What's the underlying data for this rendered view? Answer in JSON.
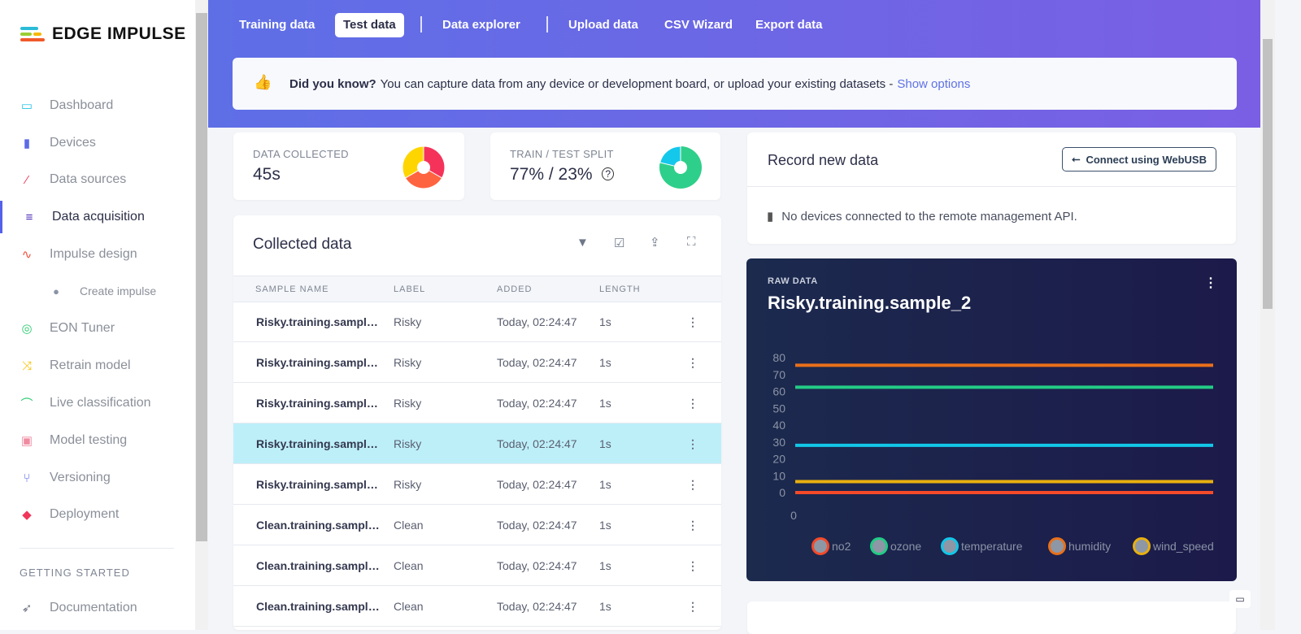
{
  "brand": "EDGE IMPULSE",
  "sidebar": {
    "items": [
      {
        "label": "Dashboard",
        "icon": "monitor-icon",
        "color": "#29c4e8"
      },
      {
        "label": "Devices",
        "icon": "chip-icon",
        "color": "#5c6be6"
      },
      {
        "label": "Data sources",
        "icon": "wand-icon",
        "color": "#f0365a"
      },
      {
        "label": "Data acquisition",
        "icon": "database-icon",
        "color": "#4a2ab5"
      },
      {
        "label": "Impulse design",
        "icon": "pulse-icon",
        "color": "#f0503c"
      },
      {
        "label": "Create impulse",
        "icon": "dot-icon",
        "color": "#8a94a6"
      },
      {
        "label": "EON Tuner",
        "icon": "compass-icon",
        "color": "#2ecc71"
      },
      {
        "label": "Retrain model",
        "icon": "shuffle-icon",
        "color": "#f5c100"
      },
      {
        "label": "Live classification",
        "icon": "live-icon",
        "color": "#2ecc71"
      },
      {
        "label": "Model testing",
        "icon": "clipboard-icon",
        "color": "#f08aa0"
      },
      {
        "label": "Versioning",
        "icon": "branch-icon",
        "color": "#5c6be6"
      },
      {
        "label": "Deployment",
        "icon": "cube-icon",
        "color": "#f0365a"
      }
    ],
    "section": "GETTING STARTED",
    "doc": "Documentation"
  },
  "tabs": [
    "Training data",
    "Test data",
    "Data explorer",
    "Upload data",
    "CSV Wizard",
    "Export data"
  ],
  "tip": {
    "bold": "Did you know?",
    "text": "You can capture data from any device or development board, or upload your existing datasets -",
    "link": "Show options"
  },
  "stats": {
    "collected_label": "DATA COLLECTED",
    "collected": "45s",
    "split_label": "TRAIN / TEST SPLIT",
    "split": "77% / 23%",
    "train_pct": 77,
    "test_pct": 23
  },
  "collected": {
    "title": "Collected data",
    "columns": [
      "SAMPLE NAME",
      "LABEL",
      "ADDED",
      "LENGTH"
    ],
    "rows": [
      {
        "name": "Risky.training.sample_…",
        "label": "Risky",
        "added": "Today, 02:24:47",
        "length": "1s"
      },
      {
        "name": "Risky.training.sample_…",
        "label": "Risky",
        "added": "Today, 02:24:47",
        "length": "1s"
      },
      {
        "name": "Risky.training.sample_…",
        "label": "Risky",
        "added": "Today, 02:24:47",
        "length": "1s"
      },
      {
        "name": "Risky.training.sample_…",
        "label": "Risky",
        "added": "Today, 02:24:47",
        "length": "1s"
      },
      {
        "name": "Risky.training.sample_…",
        "label": "Risky",
        "added": "Today, 02:24:47",
        "length": "1s"
      },
      {
        "name": "Clean.training.sample_…",
        "label": "Clean",
        "added": "Today, 02:24:47",
        "length": "1s"
      },
      {
        "name": "Clean.training.sample_…",
        "label": "Clean",
        "added": "Today, 02:24:47",
        "length": "1s"
      },
      {
        "name": "Clean.training.sample_…",
        "label": "Clean",
        "added": "Today, 02:24:47",
        "length": "1s"
      }
    ],
    "selected": 3
  },
  "record": {
    "title": "Record new data",
    "button": "Connect using WebUSB",
    "status": "No devices connected to the remote management API."
  },
  "chart_data": {
    "type": "line",
    "caption": "RAW DATA",
    "title": "Risky.training.sample_2",
    "ylim": [
      0,
      80
    ],
    "yticks": [
      "80",
      "70",
      "60",
      "50",
      "40",
      "30",
      "20",
      "10",
      "0"
    ],
    "xticks": [
      "0"
    ],
    "series": [
      {
        "name": "no2",
        "value": 0,
        "color": "#f54a2a"
      },
      {
        "name": "ozone",
        "value": 62.5,
        "color": "#23cc85"
      },
      {
        "name": "temperature",
        "value": 28,
        "color": "#12c7e8"
      },
      {
        "name": "humidity",
        "value": 75.5,
        "color": "#e8701a"
      },
      {
        "name": "wind_speed",
        "value": 6.5,
        "color": "#e8b00f"
      }
    ],
    "legend": "bottom"
  }
}
